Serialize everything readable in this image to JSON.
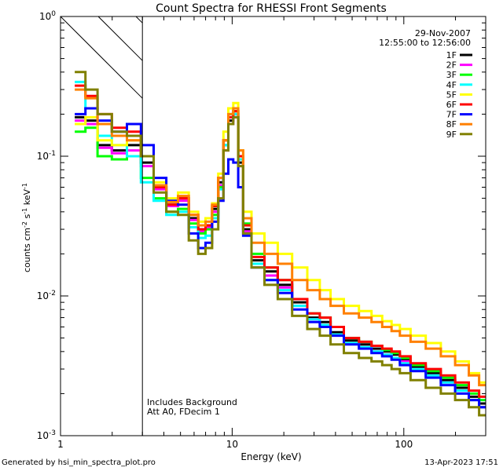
{
  "chart_data": {
    "type": "line",
    "title": "Count Spectra for RHESSI Front Segments",
    "xlabel": "Energy (keV)",
    "ylabel_parts": {
      "a": "counts cm",
      "b": "-2",
      "c": " s",
      "d": "-1",
      "e": " keV",
      "f": "-1"
    },
    "x_scale": "log",
    "y_scale": "log",
    "xlim": [
      1.0,
      300.0
    ],
    "ylim": [
      0.001,
      1.0
    ],
    "x_ticks": [
      {
        "value": 1,
        "label": "1"
      },
      {
        "value": 10,
        "label": "10"
      },
      {
        "value": 100,
        "label": "100"
      }
    ],
    "y_ticks": [
      {
        "value": 0.001,
        "label": "10",
        "exp": "-3"
      },
      {
        "value": 0.01,
        "label": "10",
        "exp": "-2"
      },
      {
        "value": 0.1,
        "label": "10",
        "exp": "-1"
      },
      {
        "value": 1,
        "label": "10",
        "exp": "0"
      }
    ],
    "shaded_region_keV": [
      1.0,
      3.0
    ],
    "date": "29-Nov-2007",
    "time_range": "12:55:00 to 12:56:00",
    "annotations": [
      "Includes Background",
      "Att A0, FDecim 1"
    ],
    "energies": [
      1.3,
      1.5,
      1.8,
      2.2,
      2.7,
      3.2,
      3.8,
      4.5,
      5.2,
      6.0,
      6.7,
      7.3,
      8.0,
      8.6,
      9.2,
      9.8,
      10.5,
      11.2,
      12.0,
      14.0,
      17.0,
      20.0,
      25.0,
      30.0,
      35.0,
      40.0,
      50.0,
      60.0,
      70.0,
      80.0,
      90.0,
      100.0,
      120.0,
      150.0,
      180.0,
      220.0,
      260.0,
      290.0
    ],
    "series": [
      {
        "name": "1F",
        "color": "#000000",
        "values": [
          0.19,
          0.18,
          0.12,
          0.11,
          0.12,
          0.09,
          0.06,
          0.045,
          0.05,
          0.036,
          0.03,
          0.032,
          0.042,
          0.065,
          0.12,
          0.18,
          0.2,
          0.09,
          0.03,
          0.018,
          0.015,
          0.012,
          0.009,
          0.007,
          0.0065,
          0.0055,
          0.0048,
          0.0045,
          0.0042,
          0.004,
          0.0038,
          0.0035,
          0.0031,
          0.0028,
          0.0025,
          0.0022,
          0.0019,
          0.0017
        ]
      },
      {
        "name": "2F",
        "color": "#ff00ff",
        "values": [
          0.18,
          0.17,
          0.115,
          0.105,
          0.11,
          0.085,
          0.058,
          0.044,
          0.048,
          0.035,
          0.029,
          0.031,
          0.04,
          0.062,
          0.11,
          0.17,
          0.19,
          0.085,
          0.029,
          0.017,
          0.014,
          0.0115,
          0.0085,
          0.0068,
          0.0062,
          0.0053,
          0.0046,
          0.0043,
          0.004,
          0.0038,
          0.0036,
          0.0034,
          0.003,
          0.0027,
          0.0024,
          0.0021,
          0.0018,
          0.0016
        ]
      },
      {
        "name": "3F",
        "color": "#00ff00",
        "values": [
          0.15,
          0.16,
          0.1,
          0.095,
          0.1,
          0.07,
          0.05,
          0.04,
          0.042,
          0.033,
          0.028,
          0.03,
          0.038,
          0.06,
          0.13,
          0.2,
          0.21,
          0.1,
          0.033,
          0.02,
          0.016,
          0.013,
          0.0095,
          0.0075,
          0.007,
          0.006,
          0.005,
          0.0047,
          0.0044,
          0.0041,
          0.0039,
          0.0036,
          0.0032,
          0.0029,
          0.0026,
          0.0023,
          0.002,
          0.0018
        ]
      },
      {
        "name": "4F",
        "color": "#00ffff",
        "values": [
          0.34,
          0.22,
          0.14,
          0.12,
          0.1,
          0.065,
          0.048,
          0.038,
          0.04,
          0.031,
          0.026,
          0.027,
          0.036,
          0.058,
          0.12,
          0.19,
          0.2,
          0.095,
          0.028,
          0.017,
          0.013,
          0.011,
          0.0085,
          0.0068,
          0.0062,
          0.0053,
          0.0046,
          0.0043,
          0.004,
          0.0038,
          0.0036,
          0.0033,
          0.003,
          0.0027,
          0.0024,
          0.0021,
          0.0018,
          0.0016
        ]
      },
      {
        "name": "5F",
        "color": "#ffff00",
        "values": [
          0.17,
          0.19,
          0.13,
          0.12,
          0.13,
          0.1,
          0.065,
          0.05,
          0.055,
          0.04,
          0.034,
          0.036,
          0.046,
          0.075,
          0.15,
          0.22,
          0.24,
          0.11,
          0.04,
          0.028,
          0.024,
          0.02,
          0.016,
          0.013,
          0.011,
          0.0095,
          0.0085,
          0.0078,
          0.0072,
          0.0066,
          0.0062,
          0.0058,
          0.0052,
          0.0046,
          0.004,
          0.0034,
          0.0028,
          0.0024
        ]
      },
      {
        "name": "6F",
        "color": "#ff0000",
        "values": [
          0.32,
          0.27,
          0.2,
          0.16,
          0.15,
          0.1,
          0.06,
          0.045,
          0.05,
          0.038,
          0.03,
          0.032,
          0.044,
          0.07,
          0.13,
          0.19,
          0.21,
          0.1,
          0.032,
          0.019,
          0.016,
          0.013,
          0.0095,
          0.0075,
          0.007,
          0.006,
          0.005,
          0.0047,
          0.0044,
          0.0042,
          0.004,
          0.0037,
          0.0033,
          0.003,
          0.0027,
          0.0024,
          0.0021,
          0.0019
        ]
      },
      {
        "name": "7F",
        "color": "#0000ff",
        "values": [
          0.2,
          0.22,
          0.18,
          0.15,
          0.17,
          0.12,
          0.07,
          0.048,
          0.045,
          0.028,
          0.022,
          0.024,
          0.034,
          0.048,
          0.075,
          0.095,
          0.09,
          0.06,
          0.027,
          0.016,
          0.013,
          0.0105,
          0.008,
          0.0065,
          0.006,
          0.0052,
          0.0045,
          0.0042,
          0.0039,
          0.0037,
          0.0035,
          0.0032,
          0.0029,
          0.0026,
          0.0023,
          0.002,
          0.0018,
          0.0016
        ]
      },
      {
        "name": "8F",
        "color": "#ff8000",
        "values": [
          0.3,
          0.26,
          0.17,
          0.14,
          0.13,
          0.1,
          0.062,
          0.047,
          0.052,
          0.038,
          0.032,
          0.034,
          0.045,
          0.07,
          0.13,
          0.2,
          0.22,
          0.11,
          0.036,
          0.024,
          0.02,
          0.017,
          0.013,
          0.011,
          0.0095,
          0.0085,
          0.0075,
          0.007,
          0.0065,
          0.006,
          0.0056,
          0.0052,
          0.0047,
          0.0042,
          0.0037,
          0.0032,
          0.0027,
          0.0023
        ]
      },
      {
        "name": "9F",
        "color": "#808000",
        "values": [
          0.4,
          0.3,
          0.2,
          0.15,
          0.14,
          0.1,
          0.055,
          0.04,
          0.038,
          0.025,
          0.02,
          0.022,
          0.03,
          0.05,
          0.11,
          0.17,
          0.19,
          0.085,
          0.028,
          0.016,
          0.012,
          0.0095,
          0.0072,
          0.0058,
          0.0052,
          0.0045,
          0.0039,
          0.0036,
          0.0034,
          0.0032,
          0.003,
          0.0028,
          0.0025,
          0.0022,
          0.002,
          0.0018,
          0.0016,
          0.0014
        ]
      }
    ]
  },
  "footer": {
    "left": "Generated by hsi_min_spectra_plot.pro",
    "right": "13-Apr-2023 17:51"
  }
}
